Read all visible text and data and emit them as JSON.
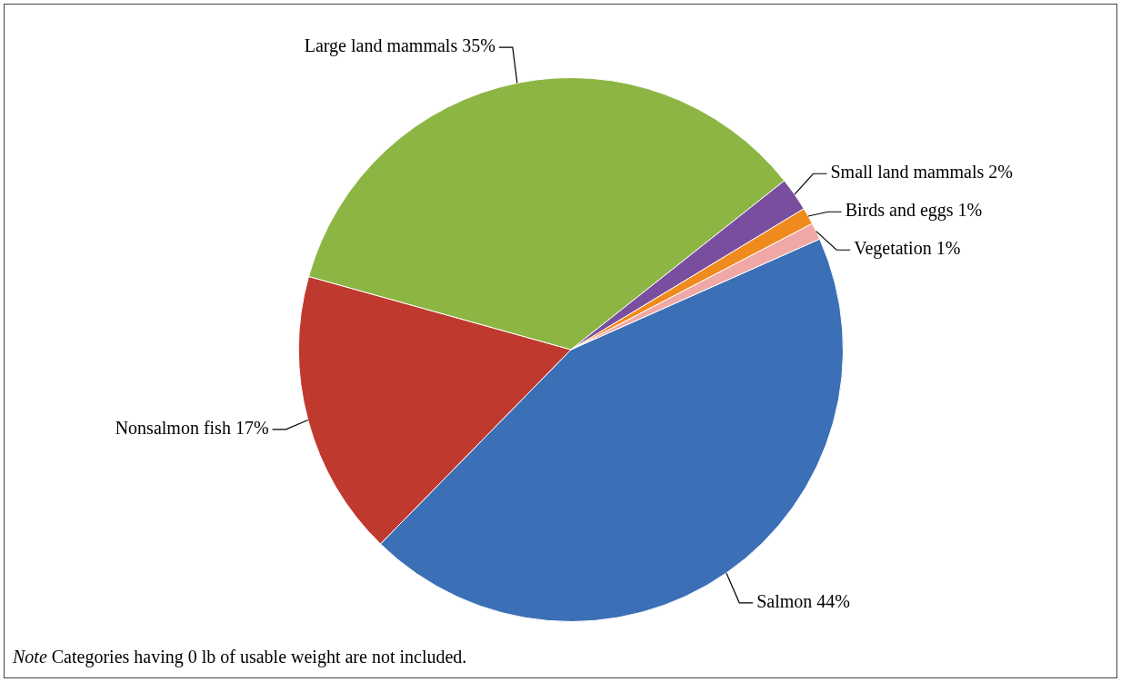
{
  "chart_data": {
    "type": "pie",
    "categories": [
      "Salmon",
      "Nonsalmon fish",
      "Large land mammals",
      "Small land mammals",
      "Birds and eggs",
      "Vegetation"
    ],
    "values": [
      44,
      17,
      35,
      2,
      1,
      1
    ],
    "value_labels": [
      "44%",
      "17%",
      "35%",
      "2%",
      "1%",
      "1%"
    ],
    "colors": [
      "#3b6fb6",
      "#c0392f",
      "#8db543",
      "#7a4e9e",
      "#ef8a1c",
      "#f0a8a6"
    ],
    "legend": false,
    "annotations": [
      "Note Categories having 0 lb of usable weight are not included."
    ]
  }
}
